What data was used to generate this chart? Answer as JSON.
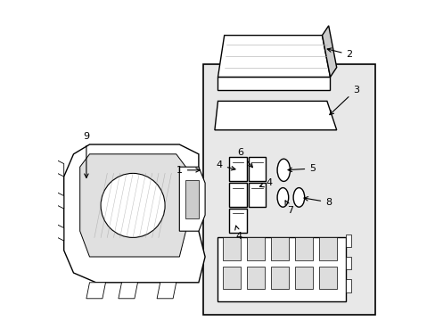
{
  "bg_color": "#ffffff",
  "box_bg": "#e8e8e8",
  "line_color": "#000000",
  "fig_size": [
    4.89,
    3.6
  ],
  "dpi": 100
}
